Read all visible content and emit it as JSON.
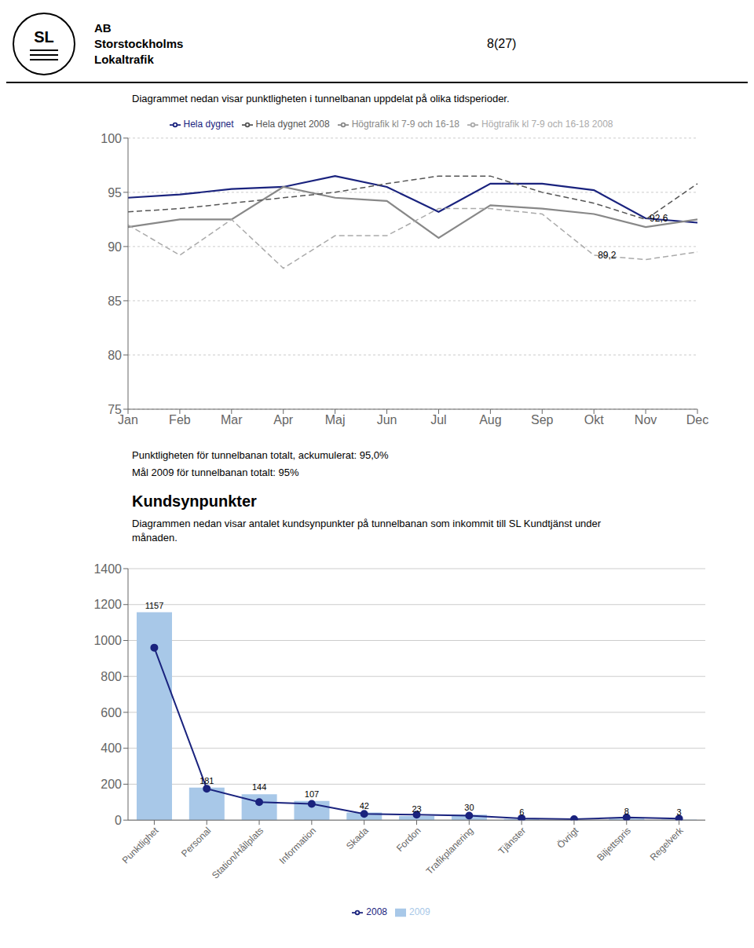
{
  "chart_data": [
    {
      "type": "line",
      "title": "Diagrammet nedan visar punktligheten i tunnelbanan uppdelat på olika tidsperioder.",
      "annotations": [
        {
          "text": "SL"
        },
        {
          "text": "AB"
        },
        {
          "text": "Storstockholms"
        },
        {
          "text": "Lokaltrafik"
        },
        {
          "text": "8(27)"
        },
        {
          "text": "92,6",
          "x": "Nov",
          "y": 92.6
        },
        {
          "text": "89,2",
          "x": "Okt",
          "y": 89.2
        },
        {
          "text": "Punktligheten för tunnelbanan totalt, ackumulerat: 95,0%"
        },
        {
          "text": "Mål 2009 för tunnelbanan totalt: 95%"
        }
      ],
      "categories": [
        "Jan",
        "Feb",
        "Mar",
        "Apr",
        "Maj",
        "Jun",
        "Jul",
        "Aug",
        "Sep",
        "Okt",
        "Nov",
        "Dec"
      ],
      "series": [
        {
          "name": "Hela dygnet",
          "color": "#1a237e",
          "line_style": "solid",
          "values": [
            94.5,
            94.8,
            95.3,
            95.5,
            96.5,
            95.5,
            93.2,
            95.8,
            95.8,
            95.2,
            92.6,
            92.2
          ]
        },
        {
          "name": "Högtrafik kl 7-9 och 16-18",
          "color": "#888888",
          "line_style": "solid",
          "values": [
            91.8,
            92.5,
            92.5,
            95.5,
            94.5,
            94.2,
            90.8,
            93.8,
            93.5,
            93.0,
            91.8,
            92.5
          ]
        },
        {
          "name": "Hela dygnet 2008",
          "color": "#555555",
          "line_style": "dashed",
          "values": [
            93.2,
            93.5,
            94.0,
            94.5,
            95.0,
            95.8,
            96.5,
            96.5,
            95.0,
            94.0,
            92.5,
            95.8
          ]
        },
        {
          "name": "Högtrafik kl 7-9 och 16-18 2008",
          "color": "#aaaaaa",
          "line_style": "dashed",
          "values": [
            92.0,
            89.2,
            92.5,
            88.0,
            91.0,
            91.0,
            93.5,
            93.5,
            93.0,
            89.2,
            88.8,
            89.5
          ]
        }
      ],
      "ylim": [
        75,
        100
      ],
      "yticks": [
        75,
        80,
        85,
        90,
        95,
        100
      ],
      "grid": true,
      "legend": "top"
    },
    {
      "type": "bar",
      "title": "Kundsynpunkter",
      "subtitle": [
        "Diagrammen nedan visar antalet kundsynpunkter på tunnelbanan som inkommit till SL Kundtjänst under",
        "månaden."
      ],
      "categories": [
        "Punktlighet",
        "Personal",
        "Station/Hållplats",
        "Information",
        "Skada",
        "Fordon",
        "Trafikplanering",
        "Tjänster",
        "Övrigt",
        "Biljettspris",
        "Regelverk"
      ],
      "series": [
        {
          "name": "2009",
          "type": "bar",
          "color": "#a8c8e8",
          "data_labels": true,
          "values": [
            1157,
            181,
            144,
            107,
            42,
            23,
            30,
            6,
            0,
            8,
            3
          ]
        },
        {
          "name": "2008",
          "type": "line",
          "color": "#1a237e",
          "marker": "circle",
          "values": [
            960,
            175,
            100,
            90,
            35,
            30,
            25,
            10,
            5,
            15,
            8
          ]
        }
      ],
      "ylim": [
        0,
        1400
      ],
      "yticks": [
        0,
        200,
        400,
        600,
        800,
        1000,
        1200,
        1400
      ],
      "grid": true,
      "legend": "bottom"
    }
  ]
}
